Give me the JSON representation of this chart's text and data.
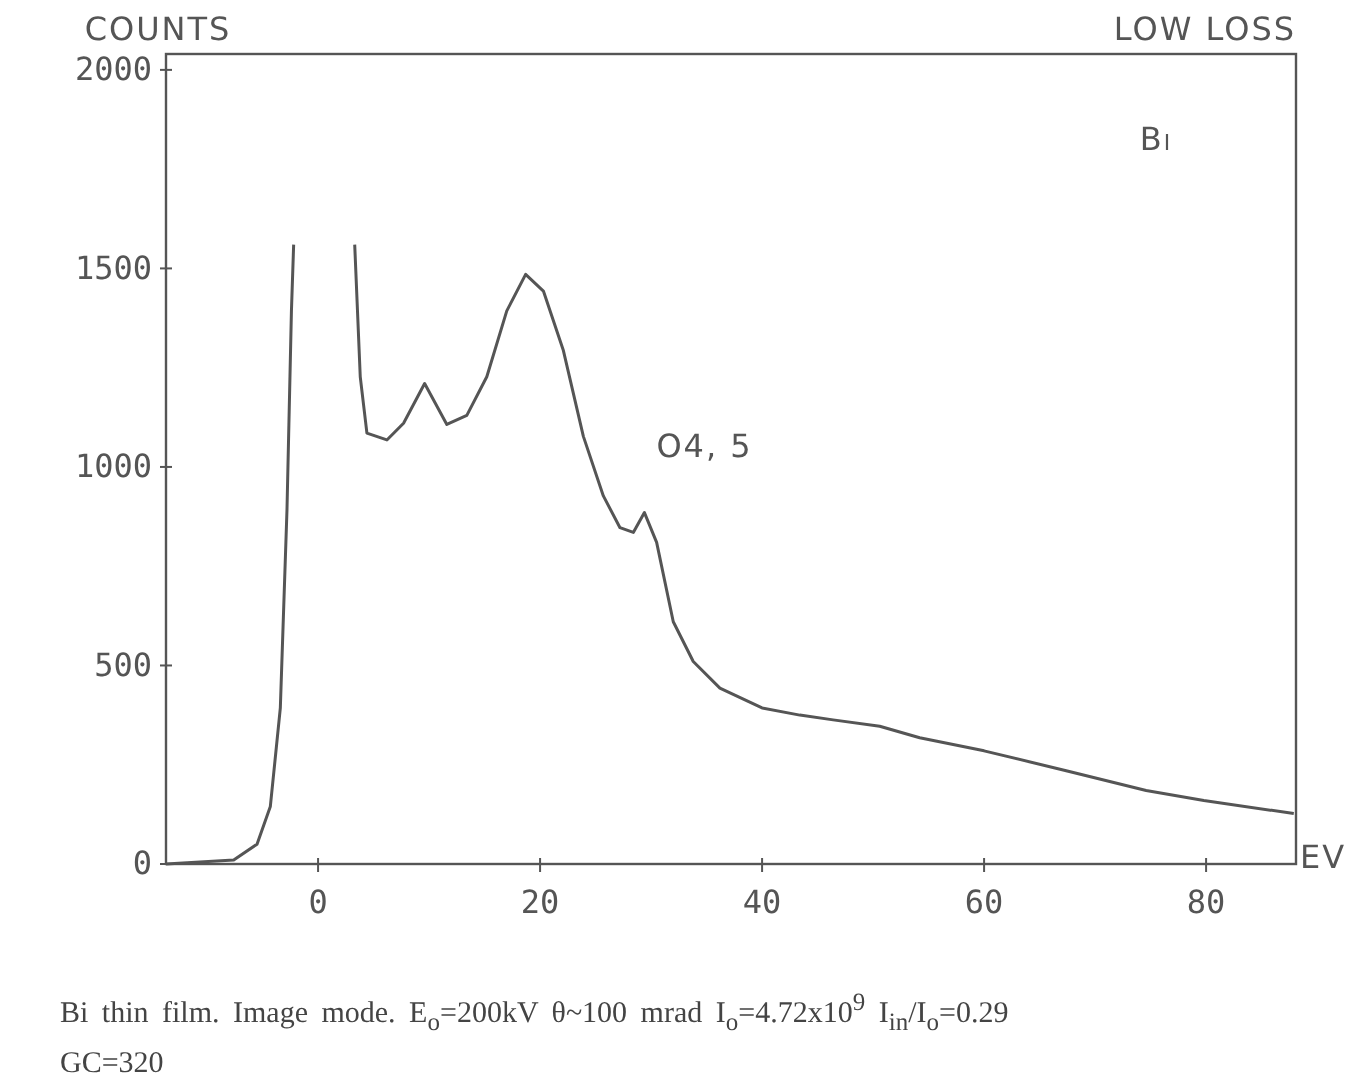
{
  "chart_data": {
    "type": "line",
    "title": "LOW LOSS",
    "xlabel": "EV",
    "ylabel": "COUNTS",
    "annotations": [
      {
        "text": "O4, 5",
        "x": 29.4,
        "y": 885
      },
      "Bi",
      "Bi thin film. Image mode. E$_{o}$=200kV θ~100 mrad I$_{o}$=4.72x10$^{9}$ I$_{in}$/I$_{o}$=0.29 GC=320"
    ],
    "x": [
      -13.7,
      -7.6,
      -5.5,
      -4.3,
      -3.4,
      -2.8,
      -2.4,
      -2.2,
      null,
      3.3,
      3.8,
      4.4,
      6.2,
      7.7,
      9.6,
      11.6,
      13.4,
      15.2,
      17.0,
      18.7,
      20.3,
      22.1,
      23.9,
      25.7,
      27.2,
      28.4,
      29.4,
      30.5,
      32.0,
      33.8,
      36.2,
      37.4,
      40.0,
      43.4,
      46.4,
      50.6,
      54.2,
      60.0,
      67.4,
      74.6,
      79.8,
      87.9
    ],
    "values": [
      0,
      10,
      50,
      145,
      393,
      893,
      1393,
      1560,
      null,
      1560,
      1227,
      1085,
      1068,
      1110,
      1210,
      1107,
      1130,
      1227,
      1393,
      1485,
      1443,
      1293,
      1077,
      927,
      847,
      835,
      885,
      810,
      610,
      510,
      443,
      427,
      393,
      375,
      363,
      347,
      318,
      285,
      235,
      185,
      160,
      127
    ],
    "color": "#555555",
    "xlim": [
      -13.7,
      88.1
    ],
    "ylim": [
      0,
      2040
    ],
    "xticks": [
      0,
      20,
      40,
      60,
      80
    ],
    "yticks": [
      0,
      500,
      1000,
      1500,
      2000
    ],
    "grid": false,
    "marker": "none",
    "line_style": "solid"
  }
}
